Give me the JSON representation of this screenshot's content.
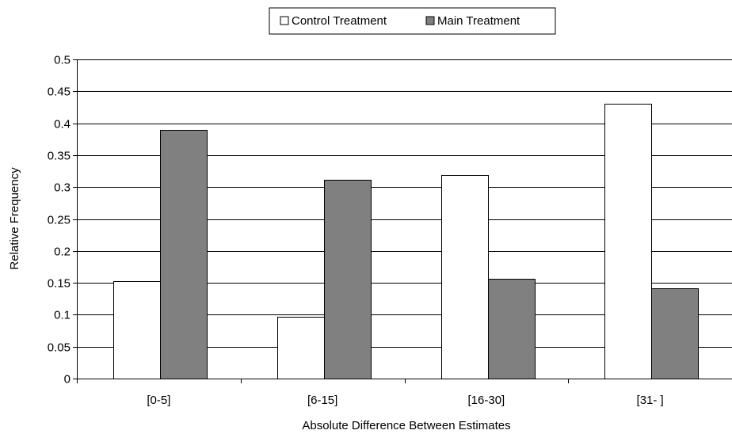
{
  "chart_data": {
    "type": "bar",
    "categories": [
      "[0-5]",
      "[6-15]",
      "[16-30]",
      "[31- ]"
    ],
    "series": [
      {
        "name": "Control Treatment",
        "values": [
          0.153,
          0.097,
          0.319,
          0.431
        ],
        "color": "#ffffff"
      },
      {
        "name": "Main Treatment",
        "values": [
          0.39,
          0.312,
          0.156,
          0.141
        ],
        "color": "#808080"
      }
    ],
    "title": "",
    "xlabel": "Absolute Difference Between Estimates",
    "ylabel": "Relative Frequency",
    "ylim": [
      0,
      0.5
    ],
    "yticks": [
      "0",
      "0.05",
      "0.1",
      "0.15",
      "0.2",
      "0.25",
      "0.3",
      "0.35",
      "0.4",
      "0.45",
      "0.5"
    ],
    "grid": true,
    "legend_position": "top-center"
  }
}
